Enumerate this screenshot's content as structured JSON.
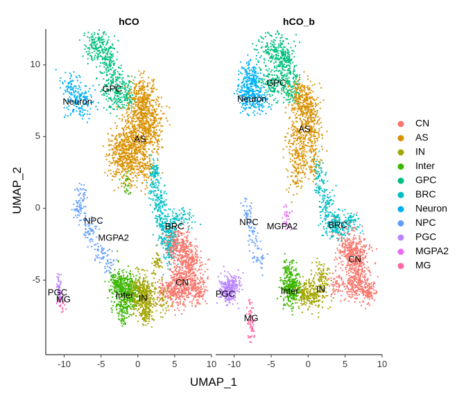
{
  "chart_data": {
    "type": "scatter",
    "xlabel": "UMAP_1",
    "ylabel": "UMAP_2",
    "xlim": [
      -12.5,
      10
    ],
    "ylim": [
      -10.2,
      12.5
    ],
    "xticks": [
      -10,
      -5,
      0,
      5,
      10
    ],
    "yticks": [
      -5,
      0,
      5,
      10
    ],
    "grid": false,
    "legend_position": "right",
    "clusters": [
      {
        "name": "CN",
        "color": "#F8766D"
      },
      {
        "name": "AS",
        "color": "#D89000"
      },
      {
        "name": "IN",
        "color": "#A3A500"
      },
      {
        "name": "Inter",
        "color": "#39B600"
      },
      {
        "name": "GPC",
        "color": "#00BF7D"
      },
      {
        "name": "BRC",
        "color": "#00BFC4"
      },
      {
        "name": "Neuron",
        "color": "#00B0F6"
      },
      {
        "name": "NPC",
        "color": "#619CFF"
      },
      {
        "name": "PGC",
        "color": "#B983FF"
      },
      {
        "name": "MGPA2",
        "color": "#E76BF3"
      },
      {
        "name": "MG",
        "color": "#FF67A4"
      }
    ],
    "panels": [
      {
        "title": "hCO",
        "labels": [
          {
            "text": "GPC",
            "x": -3.5,
            "y": 8.3
          },
          {
            "text": "Neuron",
            "x": -8.2,
            "y": 7.4
          },
          {
            "text": "AS",
            "x": 0.3,
            "y": 4.8
          },
          {
            "text": "NPC",
            "x": -6.0,
            "y": -0.9
          },
          {
            "text": "BRC",
            "x": 5.0,
            "y": -1.3
          },
          {
            "text": "MGPA2",
            "x": -3.3,
            "y": -2.1
          },
          {
            "text": "CN",
            "x": 6.0,
            "y": -5.2
          },
          {
            "text": "PGC",
            "x": -10.9,
            "y": -5.9
          },
          {
            "text": "Inter",
            "x": -1.8,
            "y": -6.1
          },
          {
            "text": "IN",
            "x": 0.7,
            "y": -6.3
          },
          {
            "text": "MG",
            "x": -10.1,
            "y": -6.4
          }
        ],
        "blobs": [
          {
            "c": "GPC",
            "x": -5.5,
            "y": 11.2,
            "sx": 0.9,
            "sy": 0.6,
            "n": 180
          },
          {
            "c": "GPC",
            "x": -3.8,
            "y": 10.2,
            "sx": 0.6,
            "sy": 0.8,
            "n": 90
          },
          {
            "c": "GPC",
            "x": -2.9,
            "y": 8.2,
            "sx": 0.9,
            "sy": 0.7,
            "n": 220
          },
          {
            "c": "GPC",
            "x": -1.3,
            "y": 7.8,
            "sx": 0.5,
            "sy": 0.4,
            "n": 60
          },
          {
            "c": "Neuron",
            "x": -9.0,
            "y": 8.4,
            "sx": 0.8,
            "sy": 0.6,
            "n": 90
          },
          {
            "c": "Neuron",
            "x": -7.0,
            "y": 7.6,
            "sx": 0.8,
            "sy": 0.5,
            "n": 70
          },
          {
            "c": "Neuron",
            "x": -8.0,
            "y": 7.0,
            "sx": 1.0,
            "sy": 0.4,
            "n": 50
          },
          {
            "c": "AS",
            "x": 0.5,
            "y": 7.5,
            "sx": 0.9,
            "sy": 0.8,
            "n": 320
          },
          {
            "c": "AS",
            "x": 1.6,
            "y": 5.8,
            "sx": 0.9,
            "sy": 1.0,
            "n": 320
          },
          {
            "c": "AS",
            "x": -0.6,
            "y": 5.0,
            "sx": 1.1,
            "sy": 1.1,
            "n": 340
          },
          {
            "c": "AS",
            "x": -1.5,
            "y": 3.2,
            "sx": 1.2,
            "sy": 0.8,
            "n": 260
          },
          {
            "c": "AS",
            "x": -2.2,
            "y": 4.3,
            "sx": 1.0,
            "sy": 0.6,
            "n": 150
          },
          {
            "c": "AS",
            "x": 1.0,
            "y": 3.0,
            "sx": 0.6,
            "sy": 0.7,
            "n": 90
          },
          {
            "c": "Inter",
            "x": -1.5,
            "y": 1.8,
            "sx": 0.4,
            "sy": 0.4,
            "n": 25
          },
          {
            "c": "BRC",
            "x": 2.2,
            "y": 2.0,
            "sx": 0.4,
            "sy": 0.8,
            "n": 90
          },
          {
            "c": "BRC",
            "x": 3.0,
            "y": 0.3,
            "sx": 0.5,
            "sy": 0.8,
            "n": 130
          },
          {
            "c": "BRC",
            "x": 4.2,
            "y": -1.5,
            "sx": 0.7,
            "sy": 0.6,
            "n": 170
          },
          {
            "c": "BRC",
            "x": 4.3,
            "y": -3.0,
            "sx": 0.5,
            "sy": 0.7,
            "n": 100
          },
          {
            "c": "BRC",
            "x": 6.0,
            "y": -0.7,
            "sx": 0.8,
            "sy": 0.4,
            "n": 60
          },
          {
            "c": "CN",
            "x": 5.5,
            "y": -2.6,
            "sx": 0.9,
            "sy": 0.7,
            "n": 220
          },
          {
            "c": "CN",
            "x": 7.0,
            "y": -3.4,
            "sx": 0.8,
            "sy": 0.6,
            "n": 180
          },
          {
            "c": "CN",
            "x": 6.3,
            "y": -5.2,
            "sx": 1.1,
            "sy": 0.8,
            "n": 380
          },
          {
            "c": "CN",
            "x": 4.4,
            "y": -5.8,
            "sx": 0.9,
            "sy": 0.4,
            "n": 160
          },
          {
            "c": "CN",
            "x": 8.2,
            "y": -5.6,
            "sx": 0.6,
            "sy": 0.5,
            "n": 110
          },
          {
            "c": "NPC",
            "x": -7.8,
            "y": 0.3,
            "sx": 0.4,
            "sy": 0.7,
            "n": 80
          },
          {
            "c": "NPC",
            "x": -6.6,
            "y": -1.6,
            "sx": 0.6,
            "sy": 0.4,
            "n": 50
          },
          {
            "c": "NPC",
            "x": -5.0,
            "y": -3.0,
            "sx": 0.7,
            "sy": 0.3,
            "n": 40
          },
          {
            "c": "NPC",
            "x": -3.8,
            "y": -4.0,
            "sx": 0.5,
            "sy": 0.4,
            "n": 30
          },
          {
            "c": "Inter",
            "x": -1.6,
            "y": -5.8,
            "sx": 1.0,
            "sy": 0.7,
            "n": 420
          },
          {
            "c": "Inter",
            "x": -3.0,
            "y": -5.2,
            "sx": 0.5,
            "sy": 0.4,
            "n": 80
          },
          {
            "c": "Inter",
            "x": -2.0,
            "y": -7.3,
            "sx": 0.4,
            "sy": 0.5,
            "n": 60
          },
          {
            "c": "IN",
            "x": 0.7,
            "y": -6.0,
            "sx": 0.9,
            "sy": 0.7,
            "n": 360
          },
          {
            "c": "IN",
            "x": 1.2,
            "y": -7.2,
            "sx": 0.5,
            "sy": 0.5,
            "n": 100
          },
          {
            "c": "IN",
            "x": 2.6,
            "y": -3.8,
            "sx": 0.4,
            "sy": 0.5,
            "n": 40
          },
          {
            "c": "IN",
            "x": 3.5,
            "y": -6.5,
            "sx": 0.4,
            "sy": 0.5,
            "n": 40
          },
          {
            "c": "PGC",
            "x": -10.7,
            "y": -5.7,
            "sx": 0.2,
            "sy": 0.5,
            "n": 50
          },
          {
            "c": "MGPA2",
            "x": -10.6,
            "y": -6.2,
            "sx": 0.25,
            "sy": 0.3,
            "n": 15
          },
          {
            "c": "MG",
            "x": -10.3,
            "y": -6.6,
            "sx": 0.25,
            "sy": 0.3,
            "n": 15
          }
        ]
      },
      {
        "title": "hCO_b",
        "labels": [
          {
            "text": "GPC",
            "x": -4.3,
            "y": 8.7
          },
          {
            "text": "Neuron",
            "x": -7.6,
            "y": 7.6
          },
          {
            "text": "AS",
            "x": -0.5,
            "y": 5.5
          },
          {
            "text": "NPC",
            "x": -8.0,
            "y": -1.0
          },
          {
            "text": "MGPA2",
            "x": -3.5,
            "y": -1.3
          },
          {
            "text": "BRC",
            "x": 4.0,
            "y": -1.2
          },
          {
            "text": "CN",
            "x": 6.3,
            "y": -3.6
          },
          {
            "text": "Inter",
            "x": -2.5,
            "y": -5.8
          },
          {
            "text": "IN",
            "x": 1.7,
            "y": -5.7
          },
          {
            "text": "PGC",
            "x": -11.2,
            "y": -6.0
          },
          {
            "text": "MG",
            "x": -7.7,
            "y": -7.7
          }
        ],
        "blobs": [
          {
            "c": "GPC",
            "x": -4.3,
            "y": 11.0,
            "sx": 1.2,
            "sy": 0.6,
            "n": 200
          },
          {
            "c": "GPC",
            "x": -3.0,
            "y": 9.5,
            "sx": 0.9,
            "sy": 0.8,
            "n": 200
          },
          {
            "c": "GPC",
            "x": -5.0,
            "y": 8.7,
            "sx": 0.8,
            "sy": 0.6,
            "n": 120
          },
          {
            "c": "GPC",
            "x": -2.2,
            "y": 8.0,
            "sx": 0.6,
            "sy": 0.4,
            "n": 60
          },
          {
            "c": "Neuron",
            "x": -7.8,
            "y": 9.0,
            "sx": 0.7,
            "sy": 0.7,
            "n": 180
          },
          {
            "c": "Neuron",
            "x": -7.0,
            "y": 7.6,
            "sx": 0.9,
            "sy": 0.5,
            "n": 150
          },
          {
            "c": "Neuron",
            "x": -8.5,
            "y": 8.0,
            "sx": 0.5,
            "sy": 0.7,
            "n": 80
          },
          {
            "c": "AS",
            "x": -0.7,
            "y": 7.6,
            "sx": 0.9,
            "sy": 0.7,
            "n": 240
          },
          {
            "c": "AS",
            "x": 0.2,
            "y": 5.8,
            "sx": 0.8,
            "sy": 1.0,
            "n": 250
          },
          {
            "c": "AS",
            "x": -1.3,
            "y": 4.5,
            "sx": 0.9,
            "sy": 1.0,
            "n": 180
          },
          {
            "c": "AS",
            "x": -1.5,
            "y": 2.5,
            "sx": 0.6,
            "sy": 0.8,
            "n": 80
          },
          {
            "c": "AS",
            "x": 0.7,
            "y": 3.0,
            "sx": 0.5,
            "sy": 0.6,
            "n": 60
          },
          {
            "c": "BRC",
            "x": 1.5,
            "y": 2.0,
            "sx": 0.4,
            "sy": 0.8,
            "n": 70
          },
          {
            "c": "BRC",
            "x": 2.6,
            "y": 0.2,
            "sx": 0.5,
            "sy": 0.8,
            "n": 100
          },
          {
            "c": "BRC",
            "x": 4.0,
            "y": -1.2,
            "sx": 0.8,
            "sy": 0.5,
            "n": 160
          },
          {
            "c": "BRC",
            "x": 5.8,
            "y": -1.0,
            "sx": 0.6,
            "sy": 0.4,
            "n": 60
          },
          {
            "c": "CN",
            "x": 5.5,
            "y": -2.8,
            "sx": 0.8,
            "sy": 0.7,
            "n": 200
          },
          {
            "c": "CN",
            "x": 6.8,
            "y": -3.6,
            "sx": 0.9,
            "sy": 0.7,
            "n": 240
          },
          {
            "c": "CN",
            "x": 6.5,
            "y": -5.2,
            "sx": 0.8,
            "sy": 0.6,
            "n": 220
          },
          {
            "c": "CN",
            "x": 8.2,
            "y": -5.8,
            "sx": 0.5,
            "sy": 0.4,
            "n": 100
          },
          {
            "c": "CN",
            "x": 3.8,
            "y": -5.2,
            "sx": 0.5,
            "sy": 0.5,
            "n": 60
          },
          {
            "c": "NPC",
            "x": -8.2,
            "y": -0.3,
            "sx": 0.4,
            "sy": 0.6,
            "n": 40
          },
          {
            "c": "NPC",
            "x": -7.5,
            "y": -2.0,
            "sx": 0.4,
            "sy": 0.5,
            "n": 30
          },
          {
            "c": "NPC",
            "x": -6.5,
            "y": -3.5,
            "sx": 0.5,
            "sy": 0.4,
            "n": 30
          },
          {
            "c": "MGPA2",
            "x": -2.8,
            "y": -0.8,
            "sx": 0.3,
            "sy": 0.4,
            "n": 30
          },
          {
            "c": "Inter",
            "x": -2.3,
            "y": -5.6,
            "sx": 0.7,
            "sy": 0.6,
            "n": 280
          },
          {
            "c": "Inter",
            "x": -2.5,
            "y": -4.3,
            "sx": 0.4,
            "sy": 0.4,
            "n": 60
          },
          {
            "c": "IN",
            "x": 0.3,
            "y": -6.0,
            "sx": 1.0,
            "sy": 0.5,
            "n": 250
          },
          {
            "c": "IN",
            "x": 1.8,
            "y": -4.8,
            "sx": 0.6,
            "sy": 0.6,
            "n": 80
          },
          {
            "c": "PGC",
            "x": -10.9,
            "y": -5.7,
            "sx": 0.6,
            "sy": 0.5,
            "n": 220
          },
          {
            "c": "PGC",
            "x": -9.8,
            "y": -5.2,
            "sx": 0.4,
            "sy": 0.3,
            "n": 50
          },
          {
            "c": "MG",
            "x": -7.8,
            "y": -7.6,
            "sx": 0.25,
            "sy": 0.7,
            "n": 50
          },
          {
            "c": "MG",
            "x": -7.5,
            "y": -8.6,
            "sx": 0.15,
            "sy": 0.4,
            "n": 15
          }
        ]
      }
    ]
  }
}
